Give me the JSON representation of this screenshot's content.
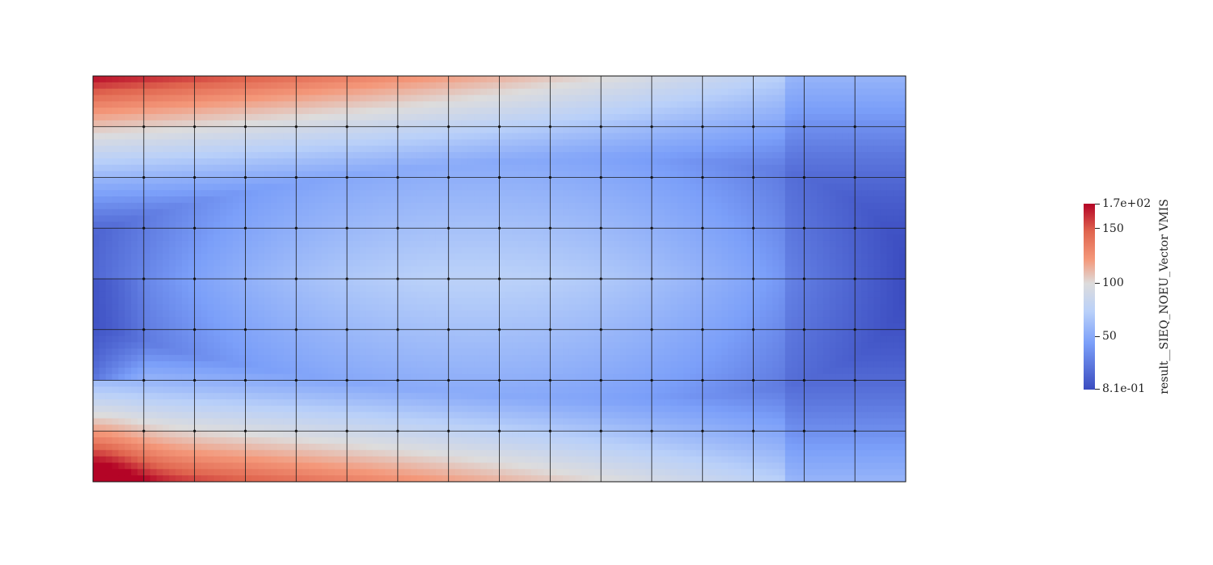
{
  "mesh": {
    "columns": 16,
    "rows": 8,
    "value_range": [
      0.81,
      170
    ],
    "colormap": [
      "#3b4cc0",
      "#7b9ff9",
      "#b9d0f9",
      "#dddcdc",
      "#f4987a",
      "#e0654f",
      "#b40426"
    ]
  },
  "colorbar": {
    "title": "result__SIEQ_NOEU_Vector VMIS",
    "max_label": "1.7e+02",
    "min_label": "8.1e-01",
    "ticks": [
      {
        "value": 170,
        "label": "1.7e+02"
      },
      {
        "value": 150,
        "label": "150"
      },
      {
        "value": 100,
        "label": "100"
      },
      {
        "value": 50,
        "label": "50"
      },
      {
        "value": 0.81,
        "label": "8.1e-01"
      }
    ]
  }
}
